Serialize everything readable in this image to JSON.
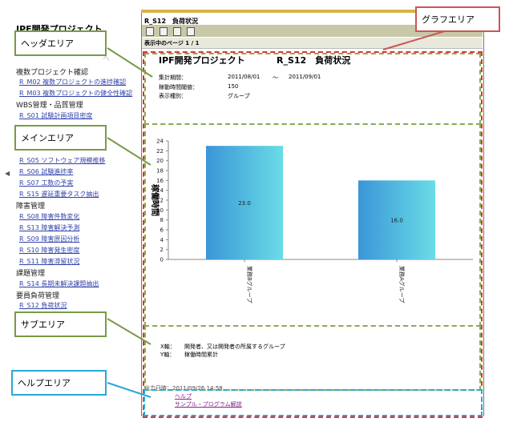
{
  "nav": {
    "title": "IPF開発プロジェクト",
    "hidden_partial_1": "ヘ",
    "heading_multi": "複数プロジェクト確認",
    "link_m02": "R_M02 複数プロジェクトの進捗確認",
    "link_m03": "R_M03 複数プロジェクトの健全性確認",
    "heading_wbs": "WBS管理・品質管理",
    "link_s01": "R_S01 試験計画項目密度",
    "link_s05": "R_S05 ソフトウェア規模推移",
    "link_s06": "R_S06 試験進捗率",
    "link_s07": "R_S07 工数の予実",
    "link_s15": "R_S15 遅延重要タスク抽出",
    "heading_bug": "障害管理",
    "link_s08": "R_S08 障害件数変化",
    "link_s13": "R_S13 障害解決予測",
    "link_s09": "R_S09 障害原因分析",
    "link_s10": "R_S10 障害発生密度",
    "link_s11": "R_S11 障害滞留状況",
    "heading_issue": "課題管理",
    "link_s14": "R_S14 長期未解決課題抽出",
    "heading_load": "要員負荷管理",
    "link_s12": "R_S12 負荷状況"
  },
  "report": {
    "tab_title": "R_S12　負荷状況",
    "page_label": "表示中のページ 1 / 1",
    "project_name": "IPF開発プロジェクト",
    "code_title": "R_S12　負荷状況",
    "period_label": "集計期間：",
    "period_from": "2011/08/01",
    "period_sep": "～",
    "period_to": "2011/09/01",
    "threshold_label": "稼動時間閾値：",
    "threshold_value": "150",
    "display_label": "表示種別：",
    "display_value": "グループ",
    "x_axis_label": "X軸：",
    "x_axis_desc": "開発者、又は開発者の所属するグループ",
    "y_axis_label": "Y軸：",
    "y_axis_desc": "稼働時間累計",
    "output_date": "出力日時：2011/09/26 14:58",
    "help_link": "ヘルプ",
    "sample_link": "サンプル・プログラム解説"
  },
  "callouts": {
    "graph_area": "グラフエリア",
    "header_area": "ヘッダエリア",
    "main_area": "メインエリア",
    "sub_area": "サブエリア",
    "help_area": "ヘルプエリア"
  },
  "colors": {
    "bar_dark": "#3a96d8",
    "bar_light": "#6adce6",
    "green_callout": "#7a9a48",
    "red_callout": "#cc5555",
    "blue_callout": "#2aa7d8"
  },
  "chart_data": {
    "type": "bar",
    "categories": [
      "業務Bグループ",
      "業務Aグループ"
    ],
    "values": [
      23.0,
      16.0
    ],
    "value_labels": [
      "23.0",
      "16.0"
    ],
    "ylabel": "稼働時間",
    "ylim": [
      0,
      24
    ],
    "yticks": [
      0,
      2,
      4,
      6,
      8,
      10,
      12,
      14,
      16,
      18,
      20,
      22,
      24
    ],
    "grid": false
  }
}
